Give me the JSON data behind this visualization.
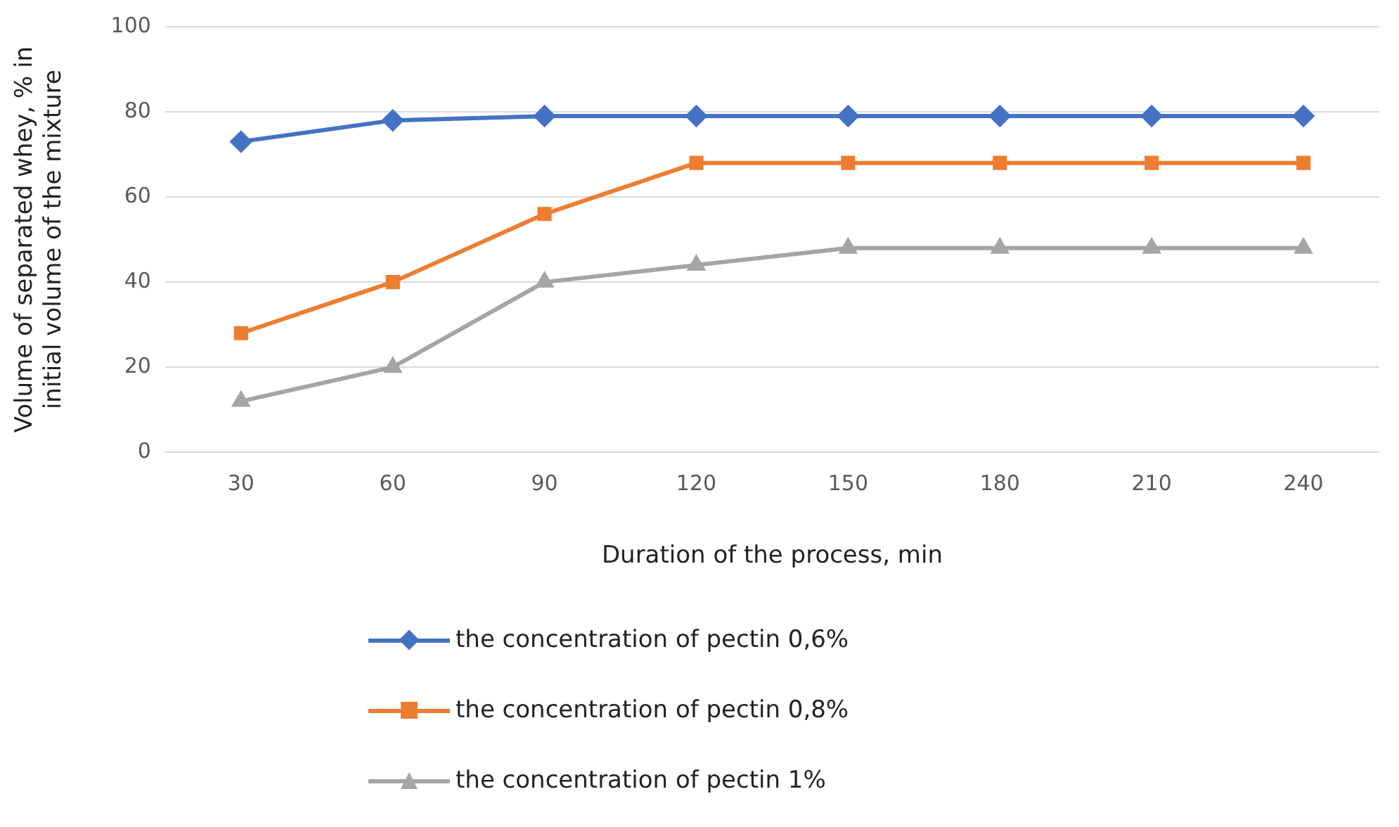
{
  "chart_data": {
    "type": "line",
    "xlabel": "Duration of the process, min",
    "ylabel": "Volume of separated whey, % in initial volume of the mixture",
    "categories": [
      "30",
      "60",
      "90",
      "120",
      "150",
      "180",
      "210",
      "240"
    ],
    "ylim": [
      0,
      100
    ],
    "yticks": [
      0,
      20,
      40,
      60,
      80,
      100
    ],
    "grid": "y",
    "legend": "bottom",
    "line_style": "solid",
    "series": [
      {
        "name": "the concentration of pectin 0,6%",
        "color": "#4472c4",
        "marker": "diamond",
        "values": [
          73,
          78,
          79,
          79,
          79,
          79,
          79,
          79
        ]
      },
      {
        "name": "the concentration of pectin 0,8%",
        "color": "#ed7d31",
        "marker": "square",
        "values": [
          28,
          40,
          56,
          68,
          68,
          68,
          68,
          68
        ]
      },
      {
        "name": "the concentration of pectin 1%",
        "color": "#a5a5a5",
        "marker": "triangle",
        "values": [
          12,
          20,
          40,
          44,
          48,
          48,
          48,
          48
        ]
      }
    ]
  }
}
